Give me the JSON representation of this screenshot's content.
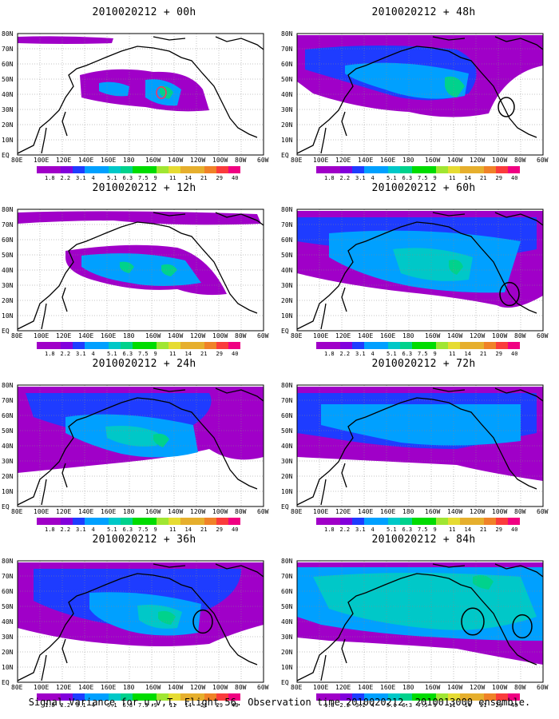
{
  "panels": [
    {
      "title": "2010020212 + 00h"
    },
    {
      "title": "2010020212 + 48h"
    },
    {
      "title": "2010020212 + 12h"
    },
    {
      "title": "2010020212 + 60h"
    },
    {
      "title": "2010020212 + 24h"
    },
    {
      "title": "2010020212 + 72h"
    },
    {
      "title": "2010020212 + 36h"
    },
    {
      "title": "2010020212 + 84h"
    }
  ],
  "lat_labels": [
    "80N",
    "70N",
    "60N",
    "50N",
    "40N",
    "30N",
    "20N",
    "10N",
    "EQ"
  ],
  "lon_labels": [
    "80E",
    "100E",
    "120E",
    "140E",
    "160E",
    "180",
    "160W",
    "140W",
    "120W",
    "100W",
    "80W",
    "60W"
  ],
  "colorbar": {
    "labels": [
      "1.8",
      "2.2",
      "3.1",
      "4",
      "5.1",
      "6.3",
      "7.5",
      "9",
      "11",
      "14",
      "21",
      "29",
      "40"
    ],
    "colors": [
      "#a000c8",
      "#8200dc",
      "#1e3cff",
      "#00a0ff",
      "#00c8c8",
      "#00d28c",
      "#00dc00",
      "#a0e632",
      "#e6dc32",
      "#e6af2d",
      "#f08228",
      "#fa3c3c",
      "#f00082"
    ]
  },
  "footer": "Signal Variance for u,v,T. Flight 56. Observation time 2010020212. 2010013000 ensemble."
}
